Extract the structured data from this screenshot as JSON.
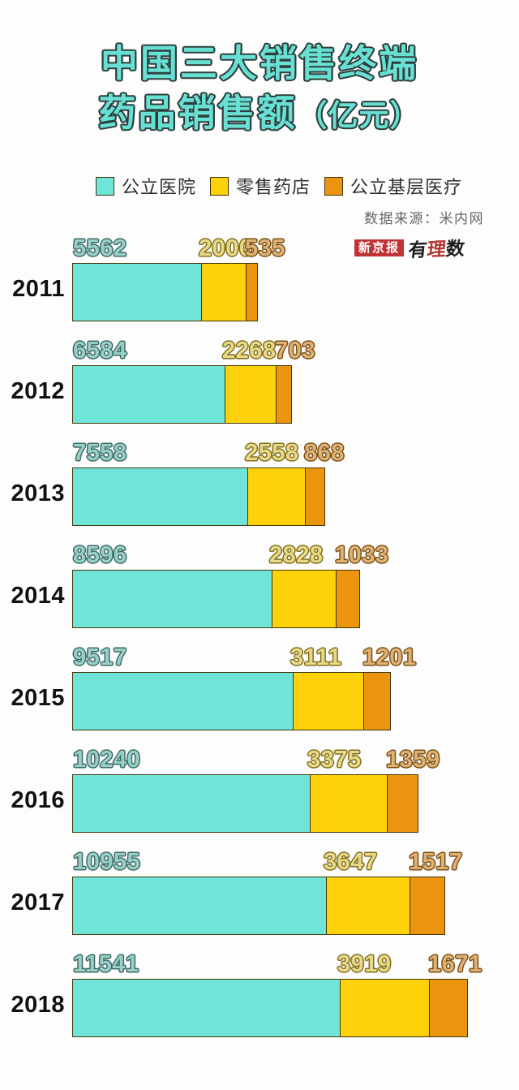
{
  "title": {
    "line1": "中国三大销售终端",
    "line2_main": "药品销售额",
    "line2_paren": "（亿元）"
  },
  "legend": [
    {
      "label": "公立医院",
      "color": "#6FE4D8"
    },
    {
      "label": "零售药店",
      "color": "#FDD20A"
    },
    {
      "label": "公立基层医疗",
      "color": "#EB9410"
    }
  ],
  "source": {
    "text": "数据来源：米内网"
  },
  "logo": {
    "boxed": "新京报",
    "script": "有理数"
  },
  "colors": {
    "background": "#fdfdfd",
    "title_fill": "#68E1D4",
    "title_outline": "#2d3f3d",
    "bar_border": "#453607",
    "year_label": "#111111"
  },
  "chart_data": {
    "type": "bar",
    "orientation": "horizontal",
    "stacked": true,
    "title": "中国三大销售终端药品销售额（亿元）",
    "unit": "亿元",
    "value_labels": true,
    "legend_position": "top",
    "grid": false,
    "categories": [
      "2011",
      "2012",
      "2013",
      "2014",
      "2015",
      "2016",
      "2017",
      "2018"
    ],
    "series": [
      {
        "name": "公立医院",
        "color": "#6FE4D8",
        "label_fill": "#98CFC8",
        "label_stroke": "#3F6B66",
        "values": [
          5562,
          6584,
          7558,
          8596,
          9517,
          10240,
          10955,
          11541
        ]
      },
      {
        "name": "零售药店",
        "color": "#FDD20A",
        "label_fill": "#E9D78A",
        "label_stroke": "#80701A",
        "values": [
          2000,
          2268,
          2558,
          2828,
          3111,
          3375,
          3647,
          3919
        ]
      },
      {
        "name": "公立基层医疗",
        "color": "#EB9410",
        "label_fill": "#E0B175",
        "label_stroke": "#7A5115",
        "values": [
          535,
          703,
          868,
          1033,
          1201,
          1359,
          1517,
          1671
        ]
      }
    ]
  }
}
